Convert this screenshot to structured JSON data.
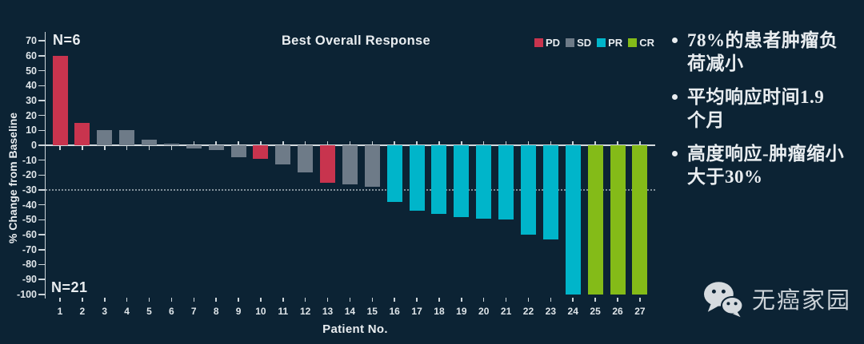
{
  "chart_data": {
    "type": "bar",
    "title": "Best Overall Response",
    "xlabel": "Patient No.",
    "ylabel": "% Change from Baseline",
    "ylim": [
      -100,
      70
    ],
    "ytick_step": 10,
    "reference_line": -30,
    "grid": false,
    "legend_position": "top-right",
    "group_labels": {
      "top": "N=6",
      "bottom": "N=21"
    },
    "legend": [
      {
        "label": "PD",
        "color": "#c8344e"
      },
      {
        "label": "SD",
        "color": "#6e7b88"
      },
      {
        "label": "PR",
        "color": "#00b5ca"
      },
      {
        "label": "CR",
        "color": "#84bb18"
      }
    ],
    "colors": {
      "PD": "#c8344e",
      "SD": "#6e7b88",
      "PR": "#00b5ca",
      "CR": "#84bb18"
    },
    "patients": [
      {
        "no": 1,
        "value": 60,
        "response": "PD"
      },
      {
        "no": 2,
        "value": 15,
        "response": "PD"
      },
      {
        "no": 3,
        "value": 10,
        "response": "SD"
      },
      {
        "no": 4,
        "value": 10,
        "response": "SD"
      },
      {
        "no": 5,
        "value": 4,
        "response": "SD"
      },
      {
        "no": 6,
        "value": 1,
        "response": "SD"
      },
      {
        "no": 7,
        "value": -2,
        "response": "SD"
      },
      {
        "no": 8,
        "value": -3,
        "response": "SD"
      },
      {
        "no": 9,
        "value": -8,
        "response": "SD"
      },
      {
        "no": 10,
        "value": -9,
        "response": "PD"
      },
      {
        "no": 11,
        "value": -13,
        "response": "SD"
      },
      {
        "no": 12,
        "value": -18,
        "response": "SD"
      },
      {
        "no": 13,
        "value": -25,
        "response": "PD"
      },
      {
        "no": 14,
        "value": -26,
        "response": "SD"
      },
      {
        "no": 15,
        "value": -28,
        "response": "SD"
      },
      {
        "no": 16,
        "value": -38,
        "response": "PR"
      },
      {
        "no": 17,
        "value": -44,
        "response": "PR"
      },
      {
        "no": 18,
        "value": -46,
        "response": "PR"
      },
      {
        "no": 19,
        "value": -48,
        "response": "PR"
      },
      {
        "no": 20,
        "value": -49,
        "response": "PR"
      },
      {
        "no": 21,
        "value": -50,
        "response": "PR"
      },
      {
        "no": 22,
        "value": -60,
        "response": "PR"
      },
      {
        "no": 23,
        "value": -63,
        "response": "PR"
      },
      {
        "no": 24,
        "value": -100,
        "response": "PR"
      },
      {
        "no": 25,
        "value": -100,
        "response": "CR"
      },
      {
        "no": 26,
        "value": -100,
        "response": "CR"
      },
      {
        "no": 27,
        "value": -100,
        "response": "CR"
      }
    ]
  },
  "right_panel": {
    "bullets": [
      "78%的患者肿瘤负\n荷减小",
      "平均响应时间1.9\n个月",
      "高度响应-肿瘤缩小\n大于30%"
    ]
  },
  "watermark": {
    "icon": "wechat-icon",
    "text": "无癌家园"
  },
  "theme": {
    "background": "#0c2334",
    "text": "#e9edf0",
    "axis": "#cdd5da",
    "watermark_text": "#ccd3d8"
  }
}
